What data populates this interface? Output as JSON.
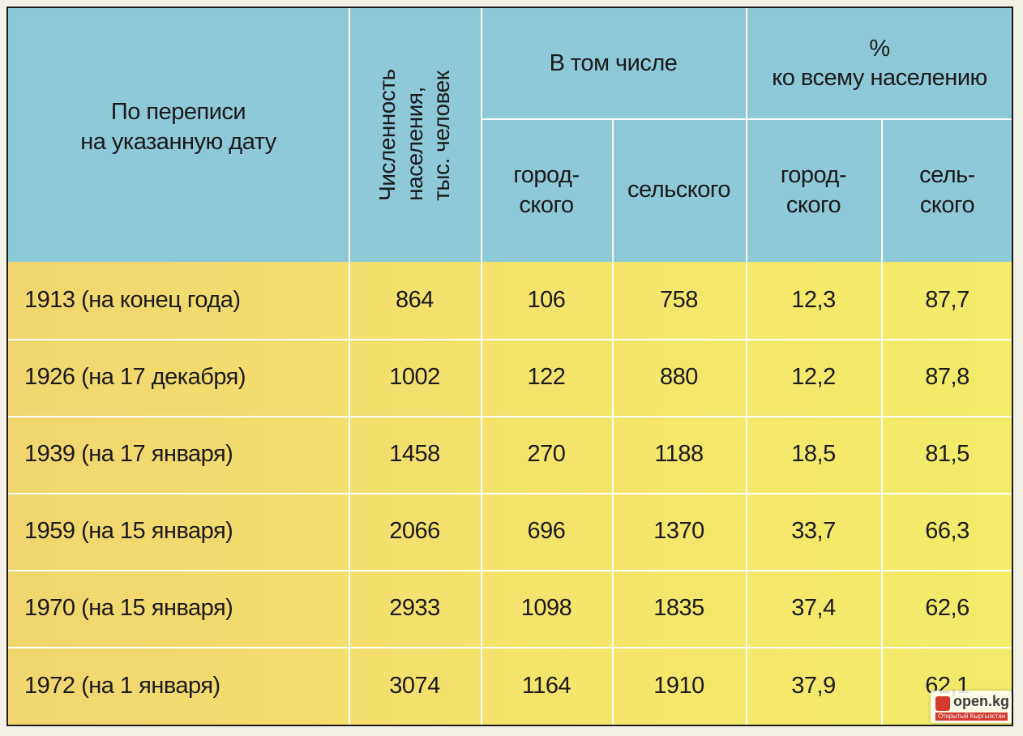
{
  "header": {
    "date_col": "По переписи\nна указанную дату",
    "population_col": "Численность\nнаселения,\nтыс. человек",
    "including": "В том числе",
    "urban": "город-\nского",
    "rural": "сельского",
    "percent": "%\nко всему населению",
    "urban_pct": "город-\nского",
    "rural_pct": "сель-\nского"
  },
  "rows": [
    {
      "date": "1913 (на конец года)",
      "total": "864",
      "urban": "106",
      "rural": "758",
      "urban_pct": "12,3",
      "rural_pct": "87,7"
    },
    {
      "date": "1926 (на 17 декабря)",
      "total": "1002",
      "urban": "122",
      "rural": "880",
      "urban_pct": "12,2",
      "rural_pct": "87,8"
    },
    {
      "date": "1939 (на 17 января)",
      "total": "1458",
      "urban": "270",
      "rural": "1188",
      "urban_pct": "18,5",
      "rural_pct": "81,5"
    },
    {
      "date": "1959 (на 15 января)",
      "total": "2066",
      "urban": "696",
      "rural": "1370",
      "urban_pct": "33,7",
      "rural_pct": "66,3"
    },
    {
      "date": "1970 (на 15 января)",
      "total": "2933",
      "urban": "1098",
      "rural": "1835",
      "urban_pct": "37,4",
      "rural_pct": "62,6"
    },
    {
      "date": "1972 (на 1 января)",
      "total": "3074",
      "urban": "1164",
      "rural": "1910",
      "urban_pct": "37,9",
      "rural_pct": "62,1"
    }
  ],
  "watermark": {
    "site": "open.kg",
    "tagline": "Открытый Кыргызстан"
  },
  "colors": {
    "header_bg": "#8ec9d8",
    "body_bg": "#f4dd6e",
    "grid": "#ffffff"
  }
}
